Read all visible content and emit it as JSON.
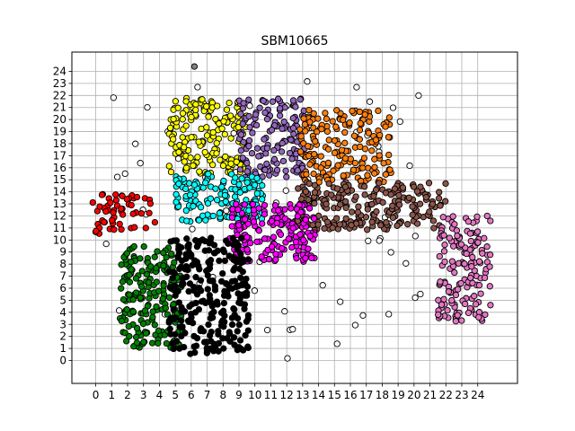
{
  "chart_data": {
    "type": "scatter",
    "title": "SBM10665",
    "xlabel": "",
    "ylabel": "",
    "xlim": [
      -1.5,
      26.5
    ],
    "ylim": [
      -1.9,
      25.6
    ],
    "xticks": [
      0,
      1,
      2,
      3,
      4,
      5,
      6,
      7,
      8,
      9,
      10,
      11,
      12,
      13,
      14,
      15,
      16,
      17,
      18,
      19,
      20,
      21,
      22,
      23,
      24
    ],
    "yticks": [
      0,
      1,
      2,
      3,
      4,
      5,
      6,
      7,
      8,
      9,
      10,
      11,
      12,
      13,
      14,
      15,
      16,
      17,
      18,
      19,
      20,
      21,
      22,
      23,
      24
    ],
    "grid": true,
    "legend": "none",
    "marker_edge_color": "#000000",
    "clusters": [
      {
        "color": "#ffff00",
        "region": {
          "x": [
            4.5,
            9.5
          ],
          "y": [
            15.5,
            21.8
          ]
        },
        "count": 170
      },
      {
        "color": "#9467bd",
        "region": {
          "x": [
            9.0,
            13.2
          ],
          "y": [
            15.2,
            21.8
          ]
        },
        "count": 150
      },
      {
        "color": "#ff7f0e",
        "region": {
          "x": [
            12.8,
            18.6
          ],
          "y": [
            14.8,
            20.8
          ]
        },
        "count": 180
      },
      {
        "color": "#00ffff",
        "region": {
          "x": [
            5.0,
            10.5
          ],
          "y": [
            11.5,
            15.5
          ]
        },
        "count": 150
      },
      {
        "color": "#8c564b",
        "region": {
          "x": [
            12.5,
            22.0
          ],
          "y": [
            10.8,
            14.8
          ]
        },
        "count": 220
      },
      {
        "color": "#ff00ff",
        "region": {
          "x": [
            8.2,
            13.8
          ],
          "y": [
            8.2,
            13.0
          ]
        },
        "count": 170
      },
      {
        "color": "#e377c2",
        "region": {
          "x": [
            21.5,
            24.8
          ],
          "y": [
            3.0,
            12.0
          ]
        },
        "count": 150
      },
      {
        "color": "#ff0000",
        "region": {
          "x": [
            -0.2,
            3.8
          ],
          "y": [
            10.5,
            13.8
          ]
        },
        "count": 55
      },
      {
        "color": "#008000",
        "region": {
          "x": [
            1.5,
            5.5
          ],
          "y": [
            1.0,
            9.5
          ]
        },
        "count": 190
      },
      {
        "color": "#000000",
        "region": {
          "x": [
            4.6,
            9.6
          ],
          "y": [
            0.5,
            10.2
          ]
        },
        "count": 260
      },
      {
        "color": "#ffffff",
        "region": {
          "x": [
            0.5,
            21.0
          ],
          "y": [
            0.0,
            23.2
          ]
        },
        "count": 75
      }
    ],
    "outliers": [
      {
        "x": 6.2,
        "y": 24.4,
        "color": "#808080"
      }
    ]
  }
}
